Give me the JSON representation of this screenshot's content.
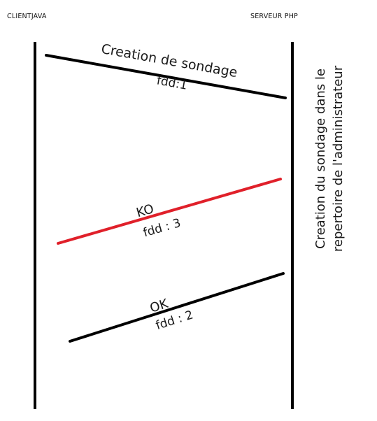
{
  "participants": {
    "client": "CLIENTJAVA",
    "server": "SERVEUR PHP"
  },
  "messages": [
    {
      "label": "Creation de sondage",
      "sublabel": "fdd:1",
      "color": "#000000"
    },
    {
      "label": "KO",
      "sublabel": "fdd : 3",
      "color": "#e0202a"
    },
    {
      "label": "OK",
      "sublabel": "fdd : 2",
      "color": "#000000"
    }
  ],
  "server_note": {
    "line1": "Creation du sondage dans le",
    "line2": "repertoire de l'administrateur"
  }
}
